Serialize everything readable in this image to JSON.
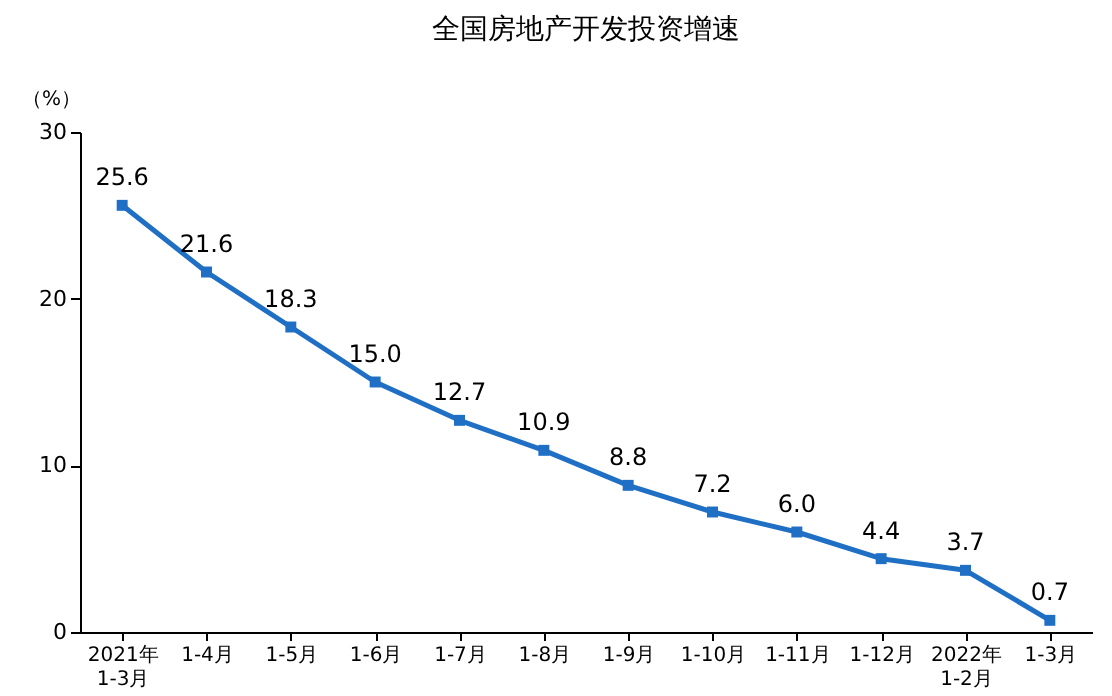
{
  "chart_data": {
    "type": "line",
    "title": "全国房地产开发投资增速",
    "ylabel": "（%）",
    "categories": [
      "2021年\n1-3月",
      "1-4月",
      "1-5月",
      "1-6月",
      "1-7月",
      "1-8月",
      "1-9月",
      "1-10月",
      "1-11月",
      "1-12月",
      "2022年\n1-2月",
      "1-3月"
    ],
    "series": [
      {
        "color": "#1f6fc5",
        "values": [
          25.6,
          21.6,
          18.3,
          15.0,
          12.7,
          10.9,
          8.8,
          7.2,
          6.0,
          4.4,
          3.7,
          0.7
        ],
        "value_labels": [
          "25.6",
          "21.6",
          "18.3",
          "15.0",
          "12.7",
          "10.9",
          "8.8",
          "7.2",
          "6.0",
          "4.4",
          "3.7",
          "0.7"
        ]
      }
    ],
    "ylim": [
      0,
      30
    ],
    "yticks": [
      0,
      10,
      20,
      30
    ],
    "marker": "square",
    "line_style": "solid",
    "grid": false,
    "legend": false
  }
}
